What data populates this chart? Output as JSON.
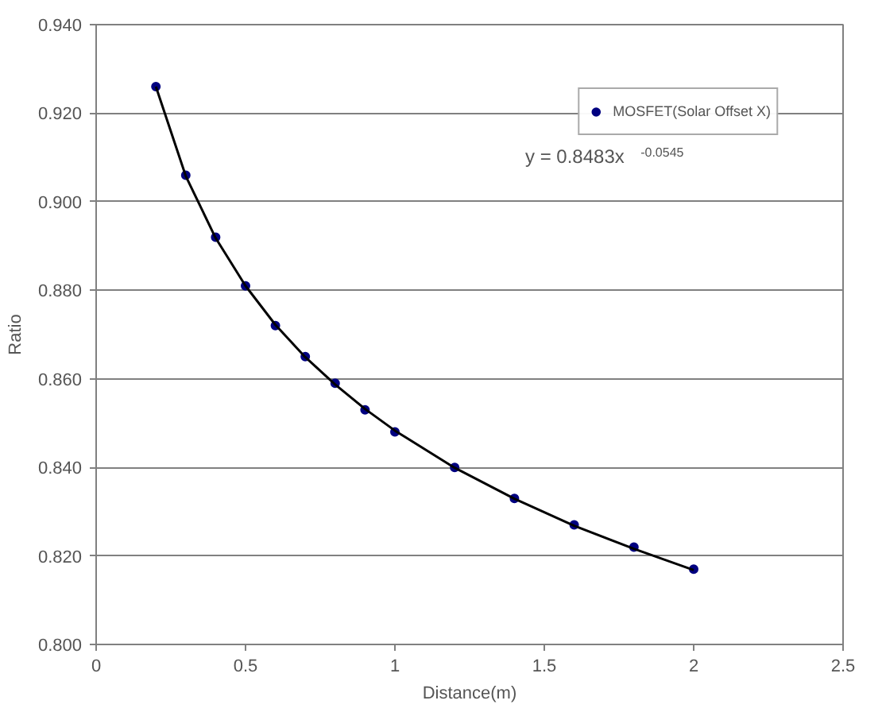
{
  "chart_data": {
    "type": "scatter",
    "xlabel": "Distance(m)",
    "ylabel": "Ratio",
    "xlim": [
      0,
      2.5
    ],
    "xticks": [
      0,
      0.5,
      1,
      1.5,
      2,
      2.5
    ],
    "ylim": [
      0.8,
      0.94
    ],
    "yticks": [
      {
        "value": 0.8,
        "label": "0.800"
      },
      {
        "value": 0.82,
        "label": "0.820"
      },
      {
        "value": 0.84,
        "label": "0.840"
      },
      {
        "value": 0.86,
        "label": "0.860"
      },
      {
        "value": 0.88,
        "label": "0.880"
      },
      {
        "value": 0.9,
        "label": "0.900"
      },
      {
        "value": 0.92,
        "label": "0.920"
      },
      {
        "value": 0.94,
        "label": "0.940"
      }
    ],
    "grid": "y",
    "legend": "top right",
    "marker": "circle",
    "series": [
      {
        "name": "MOSFET(Solar Offset X)",
        "color": "#000080",
        "x": [
          0.2,
          0.3,
          0.4,
          0.5,
          0.6,
          0.7,
          0.8,
          0.9,
          1.0,
          1.2,
          1.4,
          1.6,
          1.8,
          2.0
        ],
        "values": [
          0.926,
          0.906,
          0.892,
          0.881,
          0.872,
          0.865,
          0.859,
          0.853,
          0.848,
          0.84,
          0.833,
          0.827,
          0.822,
          0.817
        ]
      },
      {
        "type": "line",
        "color": "#000000",
        "marker": "none",
        "line_style": "solid",
        "x": [
          0.2,
          0.3,
          0.4,
          0.5,
          0.6,
          0.7,
          0.8,
          0.9,
          1.0,
          1.2,
          1.4,
          1.6,
          1.8,
          2.0
        ],
        "values": [
          0.926,
          0.9058,
          0.8918,
          0.881,
          0.8722,
          0.8649,
          0.8587,
          0.8532,
          0.8483,
          0.8399,
          0.8329,
          0.8268,
          0.8216,
          0.8168
        ]
      }
    ],
    "annotations": [
      "y = 0.8483x$^{-0.0545}$"
    ]
  }
}
